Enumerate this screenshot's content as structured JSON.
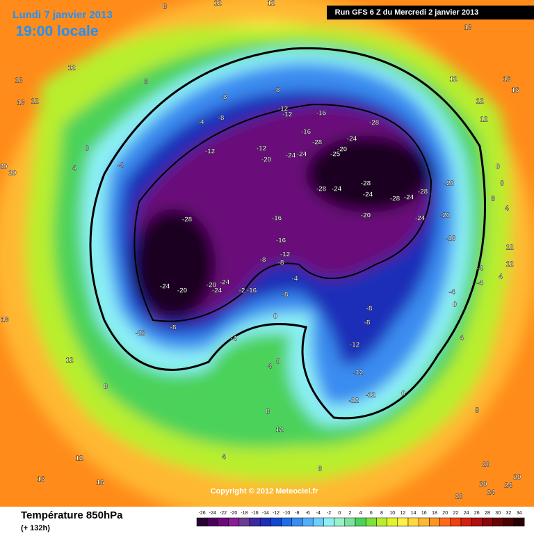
{
  "header": {
    "date": "Lundi 7 janvier 2013",
    "time": "19:00 locale",
    "run": "Run GFS 6 Z du Mercredi 2 janvier 2013"
  },
  "footer": {
    "title": "Température 850hPa",
    "lead": "(+ 132h)",
    "copyright": "Copyright © 2012 Meteociel.fr"
  },
  "colorbar": {
    "ticks": [
      -26,
      -24,
      -22,
      -20,
      -18,
      -16,
      -14,
      -12,
      -10,
      -8,
      -6,
      -4,
      -2,
      0,
      2,
      4,
      6,
      8,
      10,
      12,
      14,
      16,
      18,
      20,
      22,
      24,
      26,
      28,
      30,
      32,
      34
    ],
    "colors": [
      "#2a0036",
      "#4b0059",
      "#6b0c7a",
      "#8a1e96",
      "#6c3b92",
      "#3d2aa0",
      "#1d2fb8",
      "#1447d0",
      "#1f6ee8",
      "#3a8cf0",
      "#52aef8",
      "#6cd0fa",
      "#8ef0f6",
      "#9af0c8",
      "#7be2a0",
      "#4cd25a",
      "#7fe03c",
      "#b8ee2e",
      "#e4f22a",
      "#fff04a",
      "#ffd840",
      "#ffb830",
      "#ff9420",
      "#ff6a18",
      "#f04010",
      "#d42010",
      "#b01010",
      "#8c0808",
      "#680404",
      "#480202",
      "#2a0000"
    ]
  },
  "map": {
    "labels": [
      "8",
      "12",
      "12",
      "16",
      "16",
      "16",
      "12",
      "12",
      "8",
      "12",
      "16",
      "16",
      "12",
      "12",
      "-8",
      "-8",
      "-12",
      "-12",
      "-16",
      "-4",
      "-8",
      "-28",
      "-16",
      "-28",
      "-24",
      "-20",
      "-25",
      "-12",
      "-12",
      "-20",
      "-24",
      "-24",
      "0",
      "-4",
      "4",
      "-28",
      "-24",
      "-28",
      "-24",
      "-28",
      "-24",
      "-28",
      "-20",
      "-24",
      "-20",
      "-20",
      "-16",
      "-28",
      "-16",
      "-16",
      "-12",
      "-8",
      "-8",
      "-4",
      "-8",
      "-24",
      "-20",
      "-20",
      "-24",
      "-24",
      "-2",
      "-16",
      "-28",
      "-8",
      "-4",
      "0",
      "-8",
      "-8",
      "-12",
      "-12",
      "-12",
      "-12",
      "0",
      "4",
      "0",
      "8",
      "12",
      "4",
      "12",
      "16",
      "16",
      "8",
      "20",
      "20",
      "20",
      "24",
      "24",
      "20",
      "12",
      "12",
      "8",
      "16",
      "0",
      "0",
      "8",
      "4",
      "12",
      "-4",
      "-4",
      "-4",
      "0",
      "4",
      "4",
      "8",
      "20",
      "20"
    ]
  }
}
